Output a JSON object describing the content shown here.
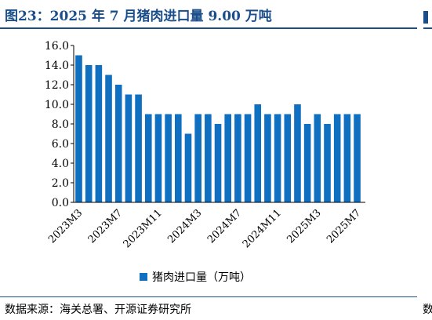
{
  "title": "图23：2025 年 7 月猪肉进口量 9.00 万吨",
  "source": "数据来源：海关总署、开源证券研究所",
  "edge_text": "数",
  "colors": {
    "brand": "#1a4e8a",
    "bar": "#0f6fc1"
  },
  "chart_data": {
    "type": "bar",
    "categories": [
      "2023M3",
      "2023M4",
      "2023M5",
      "2023M6",
      "2023M7",
      "2023M8",
      "2023M9",
      "2023M10",
      "2023M11",
      "2023M12",
      "2024M1",
      "2024M2",
      "2024M3",
      "2024M4",
      "2024M5",
      "2024M6",
      "2024M7",
      "2024M8",
      "2024M9",
      "2024M10",
      "2024M11",
      "2024M12",
      "2025M1",
      "2025M2",
      "2025M3",
      "2025M4",
      "2025M5",
      "2025M6",
      "2025M7"
    ],
    "series": [
      {
        "name": "猪肉进口量（万吨）",
        "values": [
          15,
          14,
          14,
          13,
          12,
          11,
          11,
          9,
          9,
          9,
          9,
          7,
          9,
          9,
          8,
          9,
          9,
          9,
          10,
          9,
          9,
          9,
          10,
          8,
          9,
          8,
          9,
          9,
          9
        ]
      }
    ],
    "visible_tick_labels": [
      "2023M3",
      "2023M7",
      "2023M11",
      "2024M3",
      "2024M7",
      "2024M11",
      "2025M3",
      "2025M7"
    ],
    "yticks": [
      "0.0",
      "2.0",
      "4.0",
      "6.0",
      "8.0",
      "10.0",
      "12.0",
      "14.0",
      "16.0"
    ],
    "ylim": [
      0,
      16
    ],
    "xlabel": "",
    "ylabel": "",
    "grid": false,
    "legend_position": "bottom"
  }
}
